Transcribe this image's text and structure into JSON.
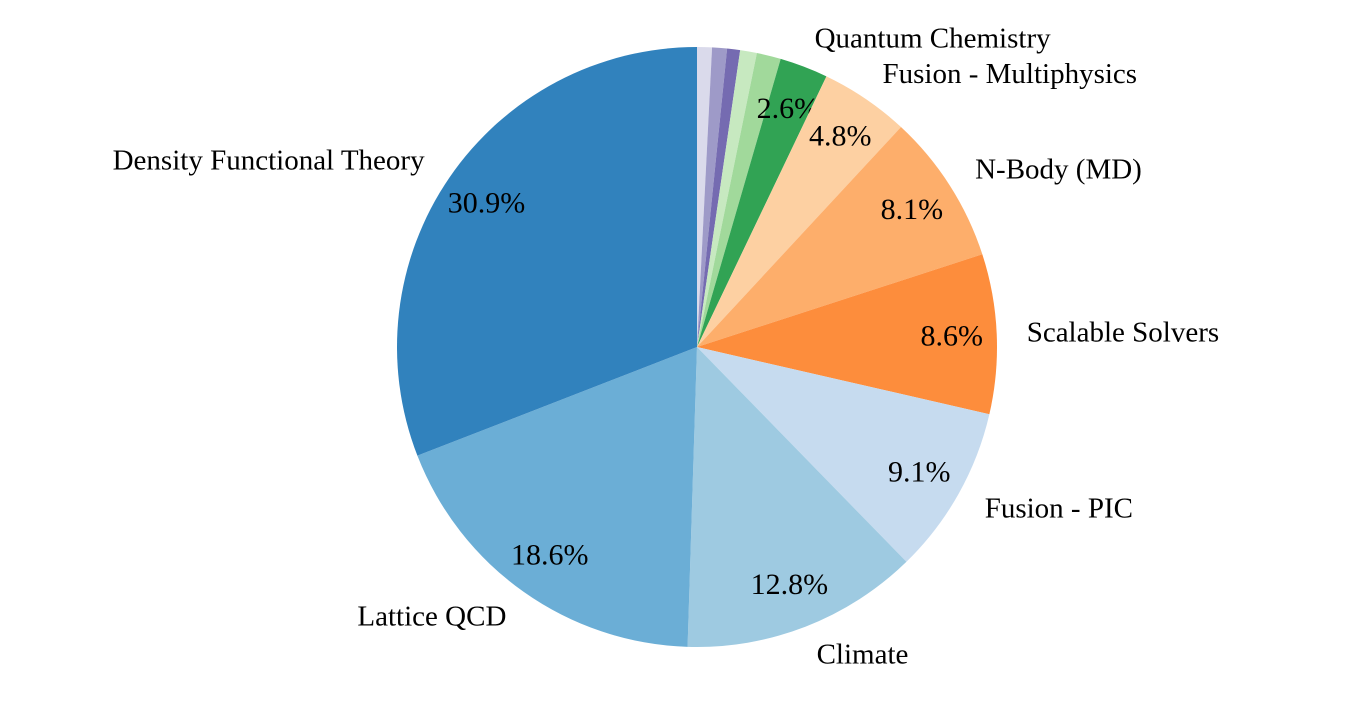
{
  "figure": {
    "background_color": "#ffffff",
    "description": "Pie chart of computational workload categories with percentage shares"
  },
  "chart_data": {
    "type": "pie",
    "title": "",
    "legend": "none (direct outside labels)",
    "direction": "clockwise",
    "start_angle": "12 o'clock",
    "label_color": "#000000",
    "slices": [
      {
        "label": "",
        "pct_label": "",
        "value": 0.8,
        "color": "#dadaeb"
      },
      {
        "label": "",
        "pct_label": "",
        "value": 0.8,
        "color": "#9e9ac8"
      },
      {
        "label": "",
        "pct_label": "",
        "value": 0.7,
        "color": "#756bb1"
      },
      {
        "label": "",
        "pct_label": "",
        "value": 0.9,
        "color": "#c7e9c0"
      },
      {
        "label": "",
        "pct_label": "",
        "value": 1.3,
        "color": "#a1d99b"
      },
      {
        "label": "Quantum Chemistry",
        "pct_label": "2.6%",
        "value": 2.6,
        "color": "#31a354"
      },
      {
        "label": "Fusion - Multiphysics",
        "pct_label": "4.8%",
        "value": 4.8,
        "color": "#fdd0a2"
      },
      {
        "label": "N-Body (MD)",
        "pct_label": "8.1%",
        "value": 8.1,
        "color": "#fdae6b"
      },
      {
        "label": "Scalable Solvers",
        "pct_label": "8.6%",
        "value": 8.6,
        "color": "#fd8d3c"
      },
      {
        "label": "Fusion - PIC",
        "pct_label": "9.1%",
        "value": 9.1,
        "color": "#c6dbef"
      },
      {
        "label": "Climate",
        "pct_label": "12.8%",
        "value": 12.8,
        "color": "#9ecae1"
      },
      {
        "label": "Lattice QCD",
        "pct_label": "18.6%",
        "value": 18.6,
        "color": "#6baed6"
      },
      {
        "label": "Density Functional Theory",
        "pct_label": "30.9%",
        "value": 30.9,
        "color": "#3182bd"
      }
    ]
  }
}
